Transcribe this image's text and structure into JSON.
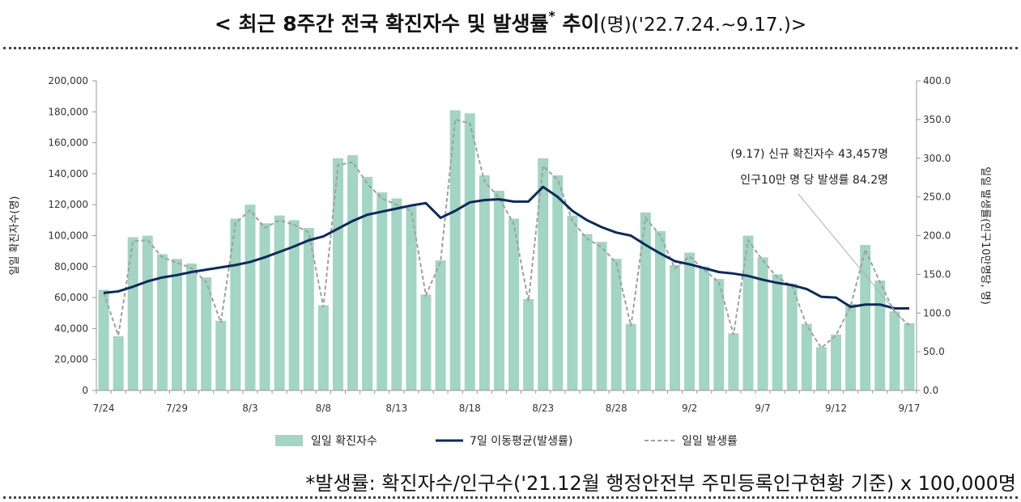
{
  "title": {
    "main": "< 최근 8주간 전국 확진자수 및 발생률",
    "mark": "*",
    "trend": " 추이",
    "suffix": "(명)('22.7.24.~9.17.)>"
  },
  "footnote": "*발생률: 확진자수/인구수('21.12월 행정안전부 주민등록인구현황 기준) x 100,000명",
  "colors": {
    "bar": "#a3d4c4",
    "moving_avg": "#0e2a5a",
    "daily_rate": "#a0a0a0",
    "axis": "#999999"
  },
  "chart_data": {
    "type": "bar",
    "x": [
      "7/24",
      "7/25",
      "7/26",
      "7/27",
      "7/28",
      "7/29",
      "7/30",
      "7/31",
      "8/1",
      "8/2",
      "8/3",
      "8/4",
      "8/5",
      "8/6",
      "8/7",
      "8/8",
      "8/9",
      "8/10",
      "8/11",
      "8/12",
      "8/13",
      "8/14",
      "8/15",
      "8/16",
      "8/17",
      "8/18",
      "8/19",
      "8/20",
      "8/21",
      "8/22",
      "8/23",
      "8/24",
      "8/25",
      "8/26",
      "8/27",
      "8/28",
      "8/29",
      "8/30",
      "8/31",
      "9/1",
      "9/2",
      "9/3",
      "9/4",
      "9/5",
      "9/6",
      "9/7",
      "9/8",
      "9/9",
      "9/10",
      "9/11",
      "9/12",
      "9/13",
      "9/14",
      "9/15",
      "9/16",
      "9/17"
    ],
    "x_tick_labels": [
      "7/24",
      "7/29",
      "8/3",
      "8/8",
      "8/13",
      "8/18",
      "8/23",
      "8/28",
      "9/2",
      "9/7",
      "9/12",
      "9/17"
    ],
    "series": [
      {
        "name": "일일 확진자수",
        "type": "bar",
        "axis": "left",
        "values": [
          65000,
          35000,
          99000,
          100000,
          88000,
          85000,
          82000,
          73000,
          45000,
          111000,
          120000,
          108000,
          113000,
          110000,
          105000,
          55000,
          150000,
          152000,
          138000,
          128000,
          124000,
          119000,
          62000,
          84000,
          181000,
          179000,
          139000,
          129000,
          111000,
          59000,
          150000,
          139000,
          113000,
          101000,
          96000,
          85000,
          43000,
          115000,
          103000,
          81000,
          89000,
          80000,
          72000,
          37000,
          100000,
          86000,
          75000,
          69000,
          43000,
          28000,
          36000,
          56000,
          94000,
          71000,
          51000,
          43457
        ]
      },
      {
        "name": "7일 이동평균(발생률)",
        "type": "line",
        "axis": "right",
        "values": [
          126,
          128,
          134,
          141,
          146,
          149,
          153,
          156,
          159,
          162,
          166,
          172,
          179,
          186,
          194,
          199,
          209,
          219,
          227,
          231,
          235,
          239,
          242,
          223,
          232,
          243,
          246,
          247,
          244,
          244,
          263,
          250,
          232,
          220,
          211,
          204,
          200,
          188,
          177,
          167,
          163,
          158,
          153,
          151,
          148,
          143,
          139,
          136,
          131,
          121,
          120,
          108,
          111,
          111,
          106,
          106
        ]
      },
      {
        "name": "일일 발생률",
        "type": "line",
        "axis": "right",
        "values": [
          126,
          71,
          193,
          194,
          172,
          165,
          158,
          140,
          88,
          216,
          233,
          210,
          220,
          214,
          204,
          108,
          291,
          295,
          267,
          248,
          240,
          232,
          123,
          166,
          350,
          345,
          270,
          249,
          215,
          115,
          290,
          272,
          219,
          196,
          185,
          165,
          83,
          223,
          200,
          158,
          173,
          156,
          140,
          72,
          194,
          168,
          146,
          135,
          84,
          55,
          71,
          109,
          182,
          140,
          101,
          84.2
        ]
      }
    ],
    "y_left": {
      "label": "일일 확진자수(명)",
      "range": [
        0,
        200000
      ],
      "ticks": [
        "0",
        "20,000",
        "40,000",
        "60,000",
        "80,000",
        "100,000",
        "120,000",
        "140,000",
        "160,000",
        "180,000",
        "200,000"
      ]
    },
    "y_right": {
      "label": "일일 발생률(인구10만명당, 명)",
      "range": [
        0,
        400
      ],
      "ticks": [
        "0.0",
        "50.0",
        "100.0",
        "150.0",
        "200.0",
        "250.0",
        "300.0",
        "350.0",
        "400.0"
      ]
    },
    "annotation": {
      "lines": [
        "(9.17) 신규 확진자수 43,457명",
        "인구10만 명 당 발생률 84.2명"
      ]
    },
    "legend_position": "bottom",
    "grid": false
  }
}
